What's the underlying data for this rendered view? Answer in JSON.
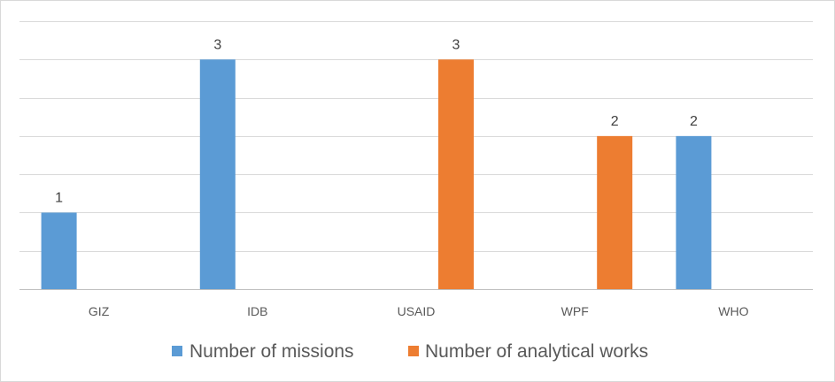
{
  "chart_data": {
    "type": "bar",
    "title": "",
    "xlabel": "",
    "ylabel": "",
    "categories": [
      "GIZ",
      "IDB",
      "USAID",
      "WPF",
      "WHO"
    ],
    "ylim": [
      0,
      3.5
    ],
    "grid": true,
    "legend_position": "bottom",
    "series": [
      {
        "name": "Number of missions",
        "color": "#5b9bd5",
        "values": [
          1,
          3,
          null,
          null,
          2
        ]
      },
      {
        "name": "Number of analytical works",
        "color": "#ed7d31",
        "values": [
          null,
          null,
          3,
          2,
          null
        ]
      }
    ],
    "data_labels": true
  },
  "colors": {
    "gridline": "#d9d9d9",
    "axis": "#bfbfbf"
  }
}
